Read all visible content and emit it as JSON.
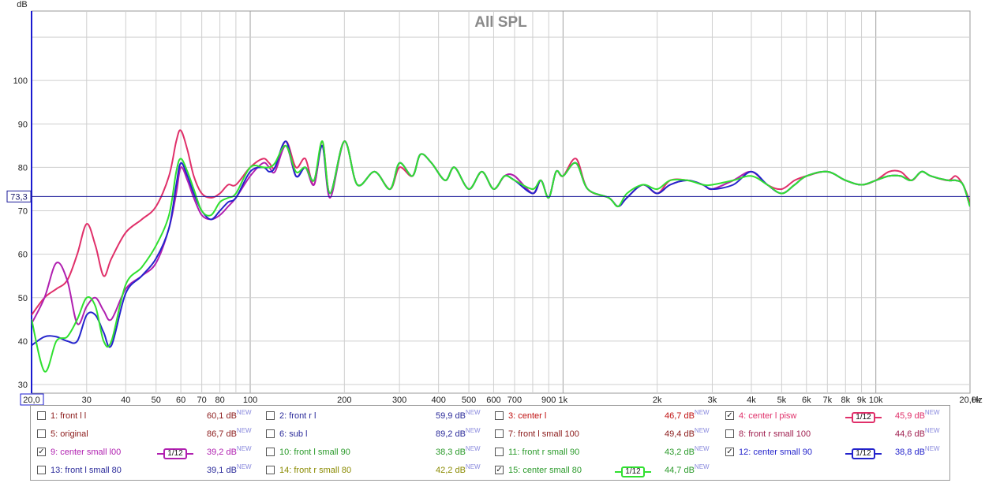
{
  "chart_data": {
    "type": "line",
    "title": "All SPL",
    "ylabel": "dB",
    "xunit": "Hz",
    "xscale": "log",
    "xlim": [
      20,
      20000
    ],
    "ylim": [
      28,
      116
    ],
    "grid": true,
    "yticks": [
      30,
      40,
      50,
      60,
      70,
      80,
      90,
      100
    ],
    "xticks": [
      {
        "v": 20,
        "label": "20,0"
      },
      {
        "v": 30,
        "label": "30"
      },
      {
        "v": 40,
        "label": "40"
      },
      {
        "v": 50,
        "label": "50"
      },
      {
        "v": 60,
        "label": "60"
      },
      {
        "v": 70,
        "label": "70"
      },
      {
        "v": 80,
        "label": "80"
      },
      {
        "v": 100,
        "label": "100"
      },
      {
        "v": 200,
        "label": "200"
      },
      {
        "v": 300,
        "label": "300"
      },
      {
        "v": 400,
        "label": "400"
      },
      {
        "v": 500,
        "label": "500"
      },
      {
        "v": 600,
        "label": "600"
      },
      {
        "v": 700,
        "label": "700"
      },
      {
        "v": 900,
        "label": "900"
      },
      {
        "v": 1000,
        "label": "1k"
      },
      {
        "v": 2000,
        "label": "2k"
      },
      {
        "v": 3000,
        "label": "3k"
      },
      {
        "v": 4000,
        "label": "4k"
      },
      {
        "v": 5000,
        "label": "5k"
      },
      {
        "v": 6000,
        "label": "6k"
      },
      {
        "v": 7000,
        "label": "7k"
      },
      {
        "v": 8000,
        "label": "8k"
      },
      {
        "v": 9000,
        "label": "9k"
      },
      {
        "v": 10000,
        "label": "10k"
      },
      {
        "v": 20000,
        "label": "20,0k"
      }
    ],
    "reference_line": {
      "value": 73.3,
      "label": "73,3",
      "color": "#1a1a9a"
    },
    "x": [
      20,
      22,
      24,
      26,
      28,
      30,
      32,
      34,
      36,
      40,
      45,
      50,
      55,
      58,
      60,
      63,
      66,
      70,
      75,
      80,
      85,
      90,
      100,
      110,
      115,
      120,
      130,
      140,
      150,
      160,
      170,
      180,
      200,
      220,
      250,
      280,
      300,
      330,
      350,
      380,
      420,
      450,
      500,
      550,
      600,
      650,
      700,
      800,
      850,
      900,
      950,
      1000,
      1100,
      1200,
      1400,
      1500,
      1600,
      1800,
      2000,
      2200,
      2500,
      2800,
      3000,
      3500,
      4000,
      4500,
      5000,
      5500,
      6000,
      7000,
      8000,
      9000,
      10000,
      11000,
      12000,
      13000,
      14000,
      15000,
      17000,
      18000,
      19000,
      20000
    ],
    "series": [
      {
        "name": "4: center l pisw",
        "color": "#e0306a",
        "values": [
          46,
          50,
          52,
          54,
          60,
          67,
          62,
          55,
          59,
          65,
          68,
          71,
          78,
          86,
          88.5,
          84,
          78,
          74,
          73,
          74,
          76,
          76,
          80,
          82,
          81,
          80,
          86,
          80,
          82,
          76,
          86,
          74,
          86,
          76,
          79,
          75,
          80,
          78,
          83,
          81,
          77,
          80,
          75,
          79,
          75,
          78,
          78,
          74,
          77,
          73,
          79,
          78,
          82,
          75,
          73,
          71,
          73,
          76,
          74,
          77,
          77,
          76,
          75,
          77,
          79,
          76,
          75,
          77,
          78,
          79,
          77,
          76,
          77,
          79,
          79,
          77,
          79,
          78,
          77,
          78,
          76,
          72
        ]
      },
      {
        "name": "9: center small l00",
        "color": "#b020b0",
        "values": [
          44,
          50,
          58,
          54,
          44,
          48,
          50,
          47,
          45,
          52,
          55,
          58,
          66,
          74,
          80,
          77,
          73,
          69,
          68,
          69,
          71,
          73,
          78,
          81,
          80,
          79,
          85,
          78,
          80,
          76,
          85,
          73,
          86,
          76,
          79,
          75,
          81,
          78,
          83,
          81,
          77,
          80,
          75,
          79,
          75,
          78,
          78,
          74,
          77,
          73,
          79,
          78,
          81,
          75,
          73,
          71,
          73,
          76,
          74,
          76,
          77,
          76,
          75,
          77,
          79,
          76,
          74,
          76,
          78,
          79,
          77,
          76,
          77,
          78,
          78,
          77,
          79,
          78,
          77,
          77,
          76,
          71
        ]
      },
      {
        "name": "12: center small 90",
        "color": "#2424cc",
        "values": [
          39,
          41,
          41,
          40,
          40,
          46,
          46,
          42,
          39,
          51,
          55,
          59,
          66,
          76,
          81,
          78,
          74,
          70,
          68,
          70,
          72,
          73,
          79,
          80,
          79,
          80,
          86,
          78,
          80,
          77,
          85,
          74,
          86,
          76,
          79,
          75,
          81,
          78,
          83,
          81,
          77,
          80,
          75,
          79,
          75,
          78,
          77,
          74,
          77,
          73,
          79,
          78,
          81,
          75,
          73,
          71,
          73,
          76,
          74,
          76,
          77,
          76,
          75,
          76,
          79,
          76,
          74,
          76,
          78,
          79,
          77,
          76,
          77,
          78,
          78,
          77,
          79,
          78,
          77,
          77,
          76,
          71
        ]
      },
      {
        "name": "15: center small 80",
        "color": "#30e030",
        "values": [
          45,
          33,
          40,
          41,
          45,
          50,
          48,
          40,
          40,
          53,
          57,
          62,
          69,
          79,
          82,
          79,
          75,
          70,
          69,
          72,
          73,
          74,
          80,
          80,
          80,
          81,
          85,
          79,
          80,
          77,
          86,
          74,
          86,
          76,
          79,
          75,
          81,
          78,
          83,
          81,
          77,
          80,
          75,
          79,
          75,
          78,
          77,
          75,
          77,
          73,
          79,
          78,
          81,
          75,
          73,
          71,
          74,
          76,
          75,
          77,
          77,
          76,
          76,
          77,
          78,
          76,
          74,
          76,
          78,
          79,
          77,
          76,
          77,
          78,
          78,
          77,
          79,
          78,
          77,
          77,
          76,
          71
        ]
      }
    ]
  },
  "legend": [
    {
      "name": "1: front l l",
      "value": "60,1 dB",
      "checked": false,
      "color": "#8b1a1a"
    },
    {
      "name": "2: front r l",
      "value": "59,9 dB",
      "checked": false,
      "color": "#2a2a9a"
    },
    {
      "name": "3: center l",
      "value": "46,7 dB",
      "checked": false,
      "color": "#c01010"
    },
    {
      "name": "4: center l pisw",
      "value": "45,9 dB",
      "checked": true,
      "color": "#e0306a",
      "smoothing": "1/12"
    },
    {
      "name": "5: original",
      "value": "86,7 dB",
      "checked": false,
      "color": "#8b1a1a"
    },
    {
      "name": "6: sub l",
      "value": "89,2 dB",
      "checked": false,
      "color": "#2a2a9a"
    },
    {
      "name": "7: front l small 100",
      "value": "49,4 dB",
      "checked": false,
      "color": "#8b1a1a"
    },
    {
      "name": "8: front r small 100",
      "value": "44,6 dB",
      "checked": false,
      "color": "#a02050"
    },
    {
      "name": "9: center small l00",
      "value": "39,2 dB",
      "checked": true,
      "color": "#b020b0",
      "smoothing": "1/12"
    },
    {
      "name": "10: front l small 90",
      "value": "38,3 dB",
      "checked": false,
      "color": "#2a9a2a"
    },
    {
      "name": "11: front r small 90",
      "value": "43,2 dB",
      "checked": false,
      "color": "#2a9a2a"
    },
    {
      "name": "12: center small 90",
      "value": "38,8 dB",
      "checked": true,
      "color": "#2424cc",
      "smoothing": "1/12"
    },
    {
      "name": "13: front l small 80",
      "value": "39,1 dB",
      "checked": false,
      "color": "#2a2a9a"
    },
    {
      "name": "14: front r small 80",
      "value": "42,2 dB",
      "checked": false,
      "color": "#8a8a00"
    },
    {
      "name": "15: center small 80",
      "value": "44,7 dB",
      "checked": true,
      "color": "#2a9a2a",
      "smoothing": "1/12",
      "badge_color": "#30e030"
    }
  ],
  "legend_new_tag": "NEW"
}
